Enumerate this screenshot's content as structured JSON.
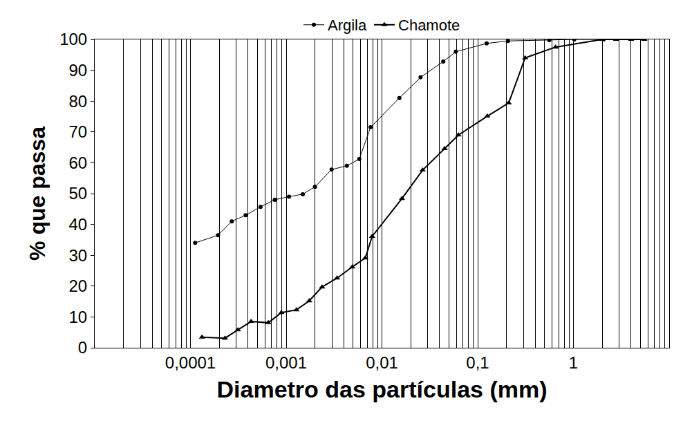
{
  "chart_data": {
    "type": "line",
    "x_label": "Diametro das partículas (mm)",
    "y_label": "% que passa",
    "log": "x",
    "grid": true,
    "legend": "top",
    "xlim": [
      1e-05,
      10
    ],
    "xticks": [
      {
        "value": 0.0001,
        "label": "0,0001"
      },
      {
        "value": 0.001,
        "label": "0,001"
      },
      {
        "value": 0.01,
        "label": "0,01"
      },
      {
        "value": 0.1,
        "label": "0,1"
      },
      1
    ],
    "ylim": [
      0,
      100
    ],
    "yticks": [
      0,
      10,
      20,
      30,
      40,
      50,
      60,
      70,
      80,
      90,
      100
    ],
    "series": [
      {
        "name": "Argila",
        "color": "#000000",
        "marker": "circle",
        "line_style": "solid",
        "x": [
          0.000112,
          0.000194,
          0.00027,
          0.000377,
          0.00054,
          0.00076,
          0.00107,
          0.00149,
          0.002,
          0.00298,
          0.0043,
          0.0058,
          0.0076,
          0.0152,
          0.0253,
          0.0437,
          0.059,
          0.124,
          0.207,
          0.56,
          1.02,
          2.07
        ],
        "values": [
          34,
          36.5,
          41,
          43,
          45.7,
          48,
          49,
          49.8,
          52.2,
          57.8,
          59,
          61.2,
          71.5,
          81,
          87.7,
          92.8,
          96,
          98.7,
          99.5,
          99.8,
          100,
          100
        ]
      },
      {
        "name": "Chamote",
        "color": "#000000",
        "marker": "triangle-up",
        "line_style": "solid",
        "x": [
          0.000132,
          0.000229,
          0.000313,
          0.00043,
          0.00065,
          0.00089,
          0.00128,
          0.00174,
          0.00237,
          0.0034,
          0.0049,
          0.0067,
          0.0079,
          0.0162,
          0.0266,
          0.0452,
          0.063,
          0.126,
          0.211,
          0.313,
          0.65,
          2.0,
          2.79,
          4.0,
          5.5
        ],
        "values": [
          3.4,
          3.1,
          5.8,
          8.5,
          8.1,
          11.4,
          12.3,
          15.2,
          19.7,
          22.6,
          26.2,
          29.1,
          36.1,
          48.4,
          57.6,
          64.6,
          69,
          75.1,
          79.4,
          94,
          97.5,
          100,
          100,
          100,
          100
        ]
      }
    ]
  }
}
